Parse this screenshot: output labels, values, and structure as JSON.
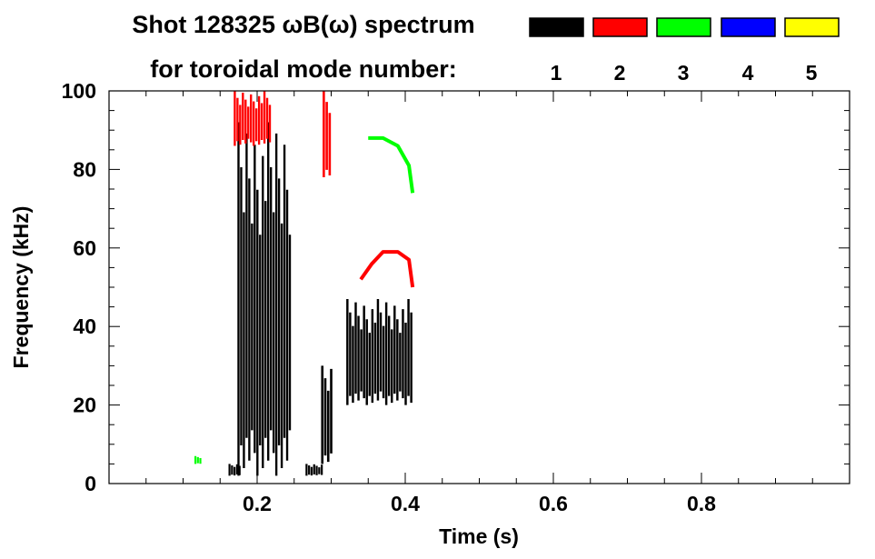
{
  "chart_data": {
    "type": "heatmap",
    "title_line1": "Shot 128325 ωB(ω) spectrum",
    "title_line2": "for toroidal mode number:",
    "xlabel": "Time (s)",
    "ylabel": "Frequency (kHz)",
    "xlim": [
      0.0,
      1.0
    ],
    "ylim": [
      0,
      100
    ],
    "x_ticks": [
      "0.2",
      "0.4",
      "0.6",
      "0.8"
    ],
    "x_tick_values": [
      0.2,
      0.4,
      0.6,
      0.8
    ],
    "y_ticks": [
      "0",
      "20",
      "40",
      "60",
      "80",
      "100"
    ],
    "y_tick_values": [
      0,
      20,
      40,
      60,
      80,
      100
    ],
    "legend": [
      {
        "mode": "1",
        "color": "#000000"
      },
      {
        "mode": "2",
        "color": "#ff0000"
      },
      {
        "mode": "3",
        "color": "#00ff00"
      },
      {
        "mode": "4",
        "color": "#0000ff"
      },
      {
        "mode": "5",
        "color": "#ffff00"
      }
    ],
    "legend_placement": "top-right",
    "grid": false,
    "regions": [
      {
        "mode": "1",
        "shape": "rect",
        "t": [
          0.161,
          0.178
        ],
        "f": [
          2,
          5
        ]
      },
      {
        "mode": "1",
        "shape": "rect",
        "t": [
          0.173,
          0.246
        ],
        "f": [
          2,
          92
        ]
      },
      {
        "mode": "1",
        "shape": "rect",
        "t": [
          0.265,
          0.289
        ],
        "f": [
          2,
          5
        ]
      },
      {
        "mode": "1",
        "shape": "rect",
        "t": [
          0.286,
          0.302
        ],
        "f": [
          5,
          30
        ]
      },
      {
        "mode": "1",
        "shape": "rect",
        "t": [
          0.32,
          0.41
        ],
        "f": [
          20,
          47
        ]
      },
      {
        "mode": "2",
        "shape": "rect",
        "t": [
          0.168,
          0.219
        ],
        "f": [
          86,
          100
        ]
      },
      {
        "mode": "2",
        "shape": "rect",
        "t": [
          0.288,
          0.3
        ],
        "f": [
          78,
          100
        ]
      },
      {
        "mode": "2",
        "shape": "curve",
        "points": [
          [
            0.34,
            52
          ],
          [
            0.355,
            56
          ],
          [
            0.37,
            59
          ],
          [
            0.39,
            59
          ],
          [
            0.405,
            57
          ],
          [
            0.41,
            50
          ]
        ]
      },
      {
        "mode": "3",
        "shape": "curve",
        "points": [
          [
            0.35,
            88
          ],
          [
            0.37,
            88
          ],
          [
            0.39,
            86
          ],
          [
            0.405,
            81
          ],
          [
            0.41,
            74
          ]
        ]
      },
      {
        "mode": "3",
        "shape": "rect",
        "t": [
          0.115,
          0.125
        ],
        "f": [
          5,
          7
        ]
      }
    ]
  }
}
